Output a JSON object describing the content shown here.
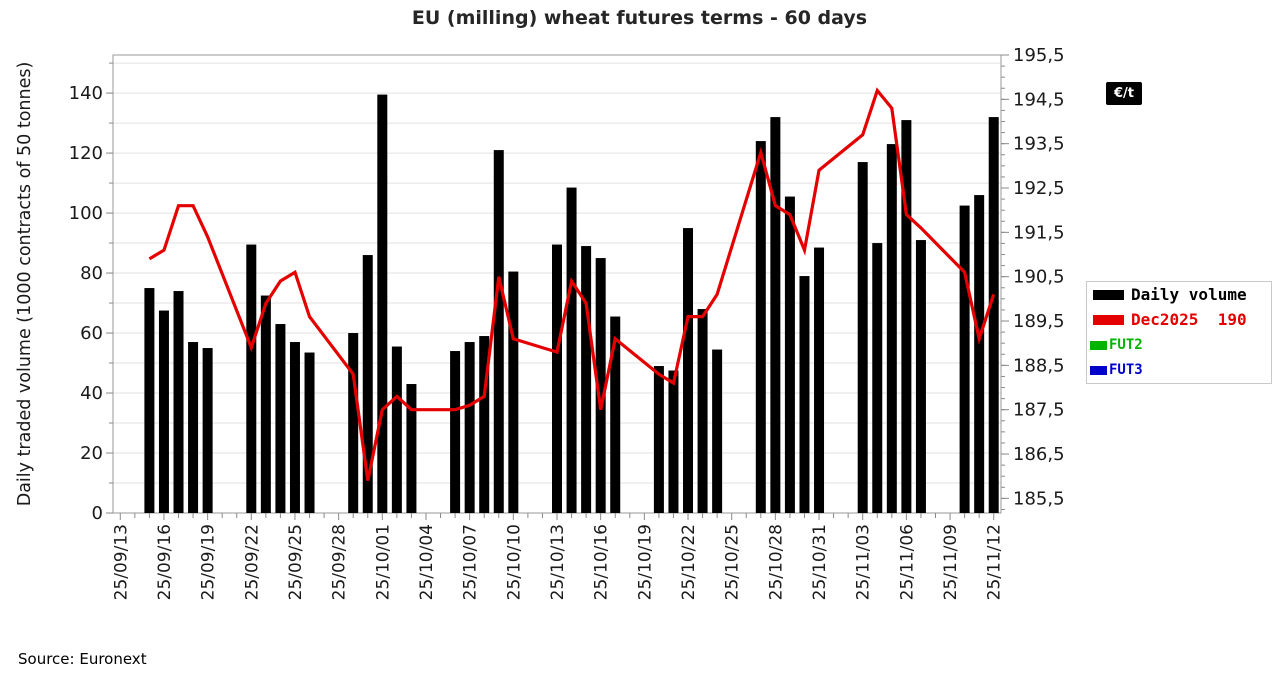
{
  "title": "EU (milling) wheat futures terms - 60 days",
  "source": "Source: Euronext",
  "unit_badge": "€/t",
  "legend": [
    {
      "label": "Daily volume",
      "color": "#000000"
    },
    {
      "label": "Dec2025  190",
      "color": "#e50000"
    },
    {
      "label": "FUT2",
      "color": "#00b400"
    },
    {
      "label": "FUT3",
      "color": "#0000cd"
    }
  ],
  "chart_data": {
    "type": "bar+line",
    "title": "EU (milling) wheat futures terms - 60 days",
    "ylabel_left": "Daily traded volume (1000 contracts of 50 tonnes)",
    "ylabel_right_badge": "€/t",
    "ylim_left": [
      0,
      152.7
    ],
    "yticks_left": [
      0,
      20,
      40,
      60,
      80,
      100,
      120,
      140
    ],
    "ylim_right": [
      185.17,
      195.5
    ],
    "yticks_right": [
      185.5,
      186.5,
      187.5,
      188.5,
      189.5,
      190.5,
      191.5,
      192.5,
      193.5,
      194.5,
      195.5
    ],
    "grid": "horizontal-every-10-left-units",
    "legend_position": "right",
    "bar_series_name": "Daily volume",
    "line_series_name": "Dec2025",
    "line_last_price": 190,
    "xtick_every_days": 3,
    "xtick_labels": [
      "25/09/13",
      "25/09/16",
      "25/09/19",
      "25/09/22",
      "25/09/25",
      "25/09/28",
      "25/10/01",
      "25/10/04",
      "25/10/07",
      "25/10/10",
      "25/10/13",
      "25/10/16",
      "25/10/19",
      "25/10/22",
      "25/10/25",
      "25/10/28",
      "25/10/31",
      "25/11/03",
      "25/11/06",
      "25/11/09",
      "25/11/12"
    ],
    "days": [
      {
        "date": "25/09/13",
        "volume": 0,
        "price": null
      },
      {
        "date": "25/09/14",
        "volume": 0,
        "price": null
      },
      {
        "date": "25/09/15",
        "volume": 75,
        "price": 190.9
      },
      {
        "date": "25/09/16",
        "volume": 67.5,
        "price": 191.1
      },
      {
        "date": "25/09/17",
        "volume": 74,
        "price": 192.1
      },
      {
        "date": "25/09/18",
        "volume": 57,
        "price": 192.1
      },
      {
        "date": "25/09/19",
        "volume": 55,
        "price": 191.4
      },
      {
        "date": "25/09/20",
        "volume": 0,
        "price": null
      },
      {
        "date": "25/09/21",
        "volume": 0,
        "price": null
      },
      {
        "date": "25/09/22",
        "volume": 89.5,
        "price": 188.9
      },
      {
        "date": "25/09/23",
        "volume": 72.5,
        "price": 189.9
      },
      {
        "date": "25/09/24",
        "volume": 63,
        "price": 190.4
      },
      {
        "date": "25/09/25",
        "volume": 57,
        "price": 190.6
      },
      {
        "date": "25/09/26",
        "volume": 53.5,
        "price": 189.6
      },
      {
        "date": "25/09/27",
        "volume": 0,
        "price": null
      },
      {
        "date": "25/09/28",
        "volume": 0,
        "price": null
      },
      {
        "date": "25/09/29",
        "volume": 60,
        "price": 188.3
      },
      {
        "date": "25/09/30",
        "volume": 86,
        "price": 185.9
      },
      {
        "date": "25/10/01",
        "volume": 139.5,
        "price": 187.5
      },
      {
        "date": "25/10/02",
        "volume": 55.5,
        "price": 187.8
      },
      {
        "date": "25/10/03",
        "volume": 43,
        "price": 187.5
      },
      {
        "date": "25/10/04",
        "volume": 0,
        "price": null
      },
      {
        "date": "25/10/05",
        "volume": 0,
        "price": null
      },
      {
        "date": "25/10/06",
        "volume": 54,
        "price": 187.5
      },
      {
        "date": "25/10/07",
        "volume": 57,
        "price": 187.6
      },
      {
        "date": "25/10/08",
        "volume": 59,
        "price": 187.8
      },
      {
        "date": "25/10/09",
        "volume": 121,
        "price": 190.5
      },
      {
        "date": "25/10/10",
        "volume": 80.5,
        "price": 189.1
      },
      {
        "date": "25/10/11",
        "volume": 0,
        "price": null
      },
      {
        "date": "25/10/12",
        "volume": 0,
        "price": null
      },
      {
        "date": "25/10/13",
        "volume": 89.5,
        "price": 188.8
      },
      {
        "date": "25/10/14",
        "volume": 108.5,
        "price": 190.4
      },
      {
        "date": "25/10/15",
        "volume": 89,
        "price": 189.9
      },
      {
        "date": "25/10/16",
        "volume": 85,
        "price": 187.5
      },
      {
        "date": "25/10/17",
        "volume": 65.5,
        "price": 189.1
      },
      {
        "date": "25/10/18",
        "volume": 0,
        "price": null
      },
      {
        "date": "25/10/19",
        "volume": 0,
        "price": null
      },
      {
        "date": "25/10/20",
        "volume": 49,
        "price": 188.3
      },
      {
        "date": "25/10/21",
        "volume": 47.5,
        "price": 188.1
      },
      {
        "date": "25/10/22",
        "volume": 95,
        "price": 189.6
      },
      {
        "date": "25/10/23",
        "volume": 68,
        "price": 189.6
      },
      {
        "date": "25/10/24",
        "volume": 54.5,
        "price": 190.1
      },
      {
        "date": "25/10/25",
        "volume": 0,
        "price": null
      },
      {
        "date": "25/10/26",
        "volume": 0,
        "price": null
      },
      {
        "date": "25/10/27",
        "volume": 124,
        "price": 193.3
      },
      {
        "date": "25/10/28",
        "volume": 132,
        "price": 192.1
      },
      {
        "date": "25/10/29",
        "volume": 105.5,
        "price": 191.9
      },
      {
        "date": "25/10/30",
        "volume": 79,
        "price": 191.1
      },
      {
        "date": "25/10/31",
        "volume": 88.5,
        "price": 192.9
      },
      {
        "date": "25/11/01",
        "volume": 0,
        "price": null
      },
      {
        "date": "25/11/02",
        "volume": 0,
        "price": null
      },
      {
        "date": "25/11/03",
        "volume": 117,
        "price": 193.7
      },
      {
        "date": "25/11/04",
        "volume": 90,
        "price": 194.7
      },
      {
        "date": "25/11/05",
        "volume": 123,
        "price": 194.3
      },
      {
        "date": "25/11/06",
        "volume": 131,
        "price": 191.9
      },
      {
        "date": "25/11/07",
        "volume": 91,
        "price": 191.6
      },
      {
        "date": "25/11/08",
        "volume": 0,
        "price": null
      },
      {
        "date": "25/11/09",
        "volume": 0,
        "price": null
      },
      {
        "date": "25/11/10",
        "volume": 102.5,
        "price": 190.6
      },
      {
        "date": "25/11/11",
        "volume": 106,
        "price": 189.1
      },
      {
        "date": "25/11/12",
        "volume": 132,
        "price": 190.1
      }
    ],
    "colors": {
      "bar": "#000000",
      "line": "#e50000",
      "fut2": "#00b400",
      "fut3": "#0000cd",
      "grid": "#e2e2e2",
      "axis": "#9a9a9a",
      "tick": "#8a8a8a",
      "label": "#1a1a1a"
    }
  }
}
